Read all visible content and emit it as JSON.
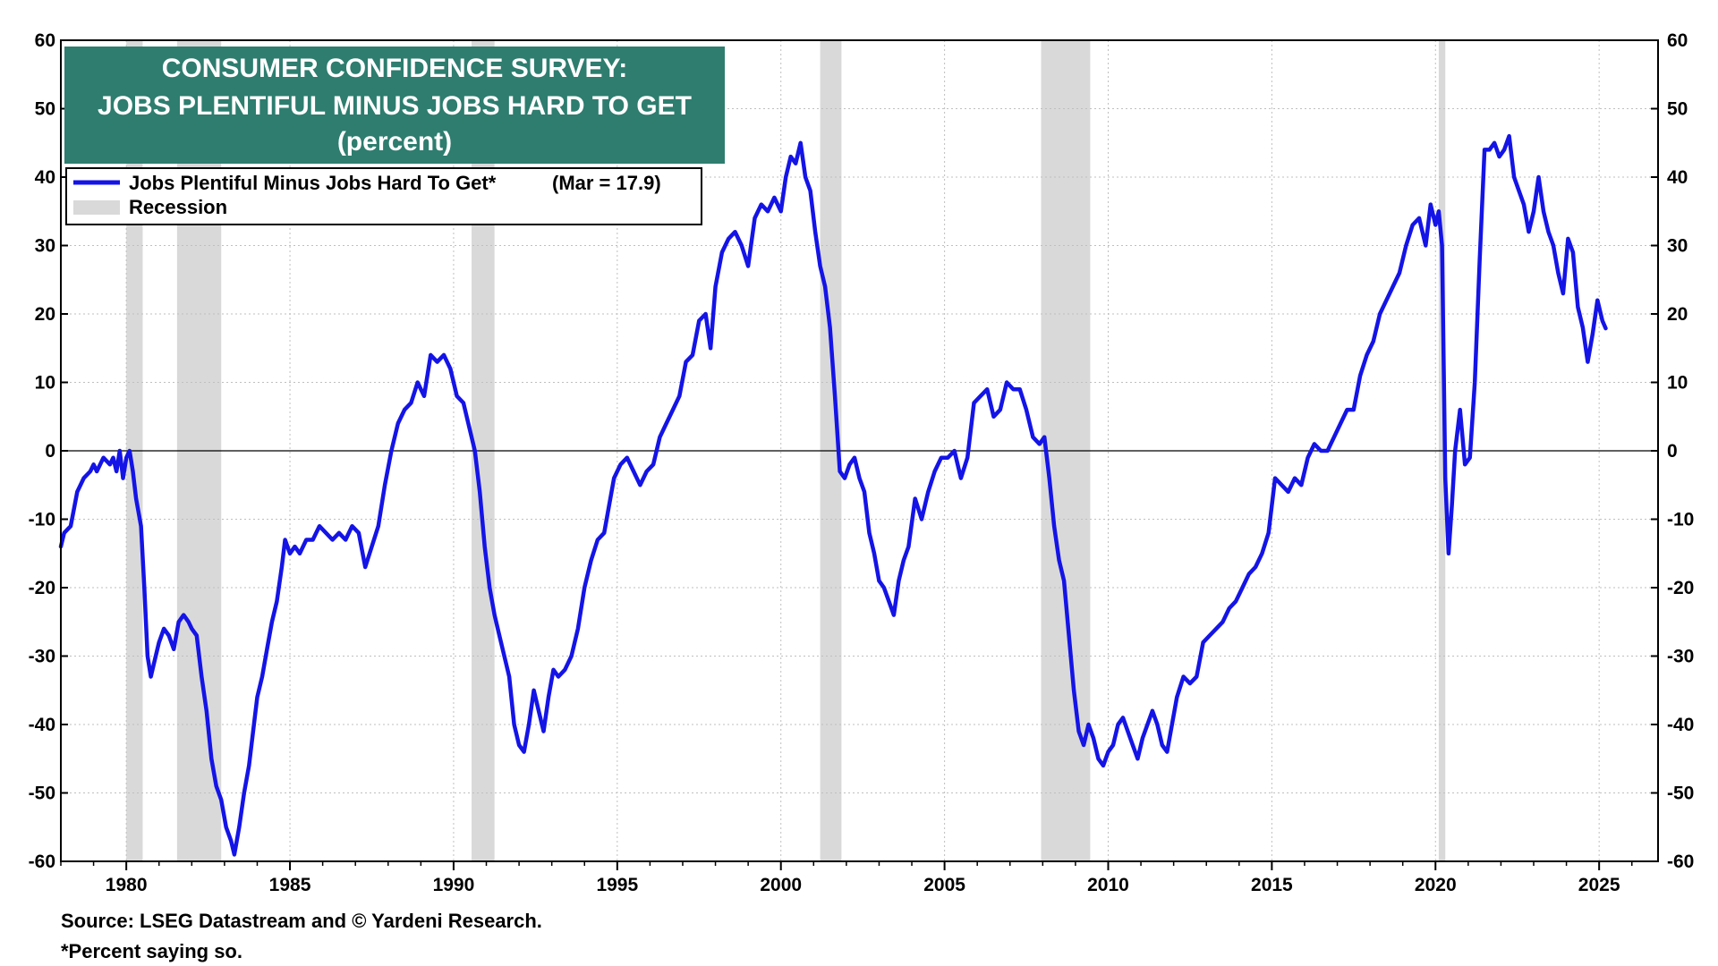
{
  "title": {
    "line1": "CONSUMER CONFIDENCE SURVEY:",
    "line2": "JOBS PLENTIFUL MINUS JOBS HARD TO GET",
    "line3": "(percent)",
    "background": "#2e7d6f"
  },
  "legend": {
    "series_label": "Jobs Plentiful Minus Jobs Hard To Get*",
    "latest_value": "(Mar = 17.9)",
    "recession_label": "Recession",
    "placement": "top-left"
  },
  "footnotes": {
    "source": "Source: LSEG Datastream and © Yardeni Research.",
    "note": "*Percent saying so."
  },
  "colors": {
    "series": "#1414e6",
    "recession": "#d9d9d9",
    "grid": "#bfbfbf",
    "zero_line": "#000000"
  },
  "chart_data": {
    "type": "line",
    "title": "CONSUMER CONFIDENCE SURVEY: JOBS PLENTIFUL MINUS JOBS HARD TO GET (percent)",
    "xlim": [
      1978.0,
      2026.8
    ],
    "ylim": [
      -60,
      60
    ],
    "x_ticks": [
      1980,
      1985,
      1990,
      1995,
      2000,
      2005,
      2010,
      2015,
      2020,
      2025
    ],
    "y_ticks": [
      60,
      50,
      40,
      30,
      20,
      10,
      0,
      -10,
      -20,
      -30,
      -40,
      -50,
      -60
    ],
    "grid": true,
    "recessions": [
      [
        1980.0,
        1980.5
      ],
      [
        1981.55,
        1982.9
      ],
      [
        1990.55,
        1991.25
      ],
      [
        2001.2,
        2001.85
      ],
      [
        2007.95,
        2009.45
      ],
      [
        2020.1,
        2020.3
      ]
    ],
    "series": [
      {
        "name": "Jobs Plentiful Minus Jobs Hard To Get*",
        "points": [
          [
            1978.0,
            -14
          ],
          [
            1978.1,
            -12
          ],
          [
            1978.3,
            -11
          ],
          [
            1978.5,
            -6
          ],
          [
            1978.7,
            -4
          ],
          [
            1978.9,
            -3
          ],
          [
            1979.0,
            -2
          ],
          [
            1979.1,
            -3
          ],
          [
            1979.3,
            -1
          ],
          [
            1979.5,
            -2
          ],
          [
            1979.6,
            -1
          ],
          [
            1979.7,
            -3
          ],
          [
            1979.8,
            0
          ],
          [
            1979.9,
            -4
          ],
          [
            1980.0,
            -1
          ],
          [
            1980.1,
            0
          ],
          [
            1980.2,
            -3
          ],
          [
            1980.3,
            -7
          ],
          [
            1980.45,
            -11
          ],
          [
            1980.55,
            -20
          ],
          [
            1980.65,
            -30
          ],
          [
            1980.75,
            -33
          ],
          [
            1980.85,
            -31
          ],
          [
            1981.0,
            -28
          ],
          [
            1981.15,
            -26
          ],
          [
            1981.3,
            -27
          ],
          [
            1981.45,
            -29
          ],
          [
            1981.6,
            -25
          ],
          [
            1981.75,
            -24
          ],
          [
            1981.9,
            -25
          ],
          [
            1982.0,
            -26
          ],
          [
            1982.15,
            -27
          ],
          [
            1982.3,
            -33
          ],
          [
            1982.45,
            -38
          ],
          [
            1982.6,
            -45
          ],
          [
            1982.75,
            -49
          ],
          [
            1982.9,
            -51
          ],
          [
            1983.05,
            -55
          ],
          [
            1983.2,
            -57
          ],
          [
            1983.3,
            -59
          ],
          [
            1983.45,
            -55
          ],
          [
            1983.6,
            -50
          ],
          [
            1983.75,
            -46
          ],
          [
            1983.9,
            -40
          ],
          [
            1984.0,
            -36
          ],
          [
            1984.15,
            -33
          ],
          [
            1984.3,
            -29
          ],
          [
            1984.45,
            -25
          ],
          [
            1984.6,
            -22
          ],
          [
            1984.75,
            -17
          ],
          [
            1984.85,
            -13
          ],
          [
            1985.0,
            -15
          ],
          [
            1985.15,
            -14
          ],
          [
            1985.3,
            -15
          ],
          [
            1985.5,
            -13
          ],
          [
            1985.7,
            -13
          ],
          [
            1985.9,
            -11
          ],
          [
            1986.1,
            -12
          ],
          [
            1986.3,
            -13
          ],
          [
            1986.5,
            -12
          ],
          [
            1986.7,
            -13
          ],
          [
            1986.9,
            -11
          ],
          [
            1987.1,
            -12
          ],
          [
            1987.3,
            -17
          ],
          [
            1987.5,
            -14
          ],
          [
            1987.7,
            -11
          ],
          [
            1987.9,
            -5
          ],
          [
            1988.1,
            0
          ],
          [
            1988.3,
            4
          ],
          [
            1988.5,
            6
          ],
          [
            1988.7,
            7
          ],
          [
            1988.9,
            10
          ],
          [
            1989.1,
            8
          ],
          [
            1989.3,
            14
          ],
          [
            1989.5,
            13
          ],
          [
            1989.7,
            14
          ],
          [
            1989.9,
            12
          ],
          [
            1990.1,
            8
          ],
          [
            1990.3,
            7
          ],
          [
            1990.5,
            3
          ],
          [
            1990.65,
            0
          ],
          [
            1990.8,
            -6
          ],
          [
            1990.95,
            -14
          ],
          [
            1991.1,
            -20
          ],
          [
            1991.25,
            -24
          ],
          [
            1991.4,
            -27
          ],
          [
            1991.55,
            -30
          ],
          [
            1991.7,
            -33
          ],
          [
            1991.85,
            -40
          ],
          [
            1992.0,
            -43
          ],
          [
            1992.15,
            -44
          ],
          [
            1992.3,
            -40
          ],
          [
            1992.45,
            -35
          ],
          [
            1992.6,
            -38
          ],
          [
            1992.75,
            -41
          ],
          [
            1992.9,
            -36
          ],
          [
            1993.05,
            -32
          ],
          [
            1993.2,
            -33
          ],
          [
            1993.4,
            -32
          ],
          [
            1993.6,
            -30
          ],
          [
            1993.8,
            -26
          ],
          [
            1994.0,
            -20
          ],
          [
            1994.2,
            -16
          ],
          [
            1994.4,
            -13
          ],
          [
            1994.6,
            -12
          ],
          [
            1994.75,
            -8
          ],
          [
            1994.9,
            -4
          ],
          [
            1995.1,
            -2
          ],
          [
            1995.3,
            -1
          ],
          [
            1995.5,
            -3
          ],
          [
            1995.7,
            -5
          ],
          [
            1995.9,
            -3
          ],
          [
            1996.1,
            -2
          ],
          [
            1996.3,
            2
          ],
          [
            1996.5,
            4
          ],
          [
            1996.7,
            6
          ],
          [
            1996.9,
            8
          ],
          [
            1997.1,
            13
          ],
          [
            1997.3,
            14
          ],
          [
            1997.5,
            19
          ],
          [
            1997.7,
            20
          ],
          [
            1997.85,
            15
          ],
          [
            1998.0,
            24
          ],
          [
            1998.2,
            29
          ],
          [
            1998.4,
            31
          ],
          [
            1998.6,
            32
          ],
          [
            1998.8,
            30
          ],
          [
            1999.0,
            27
          ],
          [
            1999.2,
            34
          ],
          [
            1999.4,
            36
          ],
          [
            1999.6,
            35
          ],
          [
            1999.8,
            37
          ],
          [
            2000.0,
            35
          ],
          [
            2000.15,
            40
          ],
          [
            2000.3,
            43
          ],
          [
            2000.45,
            42
          ],
          [
            2000.6,
            45
          ],
          [
            2000.75,
            40
          ],
          [
            2000.9,
            38
          ],
          [
            2001.05,
            32
          ],
          [
            2001.2,
            27
          ],
          [
            2001.35,
            24
          ],
          [
            2001.5,
            18
          ],
          [
            2001.65,
            8
          ],
          [
            2001.8,
            -3
          ],
          [
            2001.95,
            -4
          ],
          [
            2002.1,
            -2
          ],
          [
            2002.25,
            -1
          ],
          [
            2002.4,
            -4
          ],
          [
            2002.55,
            -6
          ],
          [
            2002.7,
            -12
          ],
          [
            2002.85,
            -15
          ],
          [
            2003.0,
            -19
          ],
          [
            2003.15,
            -20
          ],
          [
            2003.3,
            -22
          ],
          [
            2003.45,
            -24
          ],
          [
            2003.6,
            -19
          ],
          [
            2003.75,
            -16
          ],
          [
            2003.9,
            -14
          ],
          [
            2004.1,
            -7
          ],
          [
            2004.3,
            -10
          ],
          [
            2004.5,
            -6
          ],
          [
            2004.7,
            -3
          ],
          [
            2004.9,
            -1
          ],
          [
            2005.1,
            -1
          ],
          [
            2005.3,
            0
          ],
          [
            2005.5,
            -4
          ],
          [
            2005.7,
            -1
          ],
          [
            2005.9,
            7
          ],
          [
            2006.1,
            8
          ],
          [
            2006.3,
            9
          ],
          [
            2006.5,
            5
          ],
          [
            2006.7,
            6
          ],
          [
            2006.9,
            10
          ],
          [
            2007.1,
            9
          ],
          [
            2007.3,
            9
          ],
          [
            2007.5,
            6
          ],
          [
            2007.7,
            2
          ],
          [
            2007.9,
            1
          ],
          [
            2008.05,
            2
          ],
          [
            2008.2,
            -4
          ],
          [
            2008.35,
            -11
          ],
          [
            2008.5,
            -16
          ],
          [
            2008.65,
            -19
          ],
          [
            2008.8,
            -27
          ],
          [
            2008.95,
            -35
          ],
          [
            2009.1,
            -41
          ],
          [
            2009.25,
            -43
          ],
          [
            2009.4,
            -40
          ],
          [
            2009.55,
            -42
          ],
          [
            2009.7,
            -45
          ],
          [
            2009.85,
            -46
          ],
          [
            2010.0,
            -44
          ],
          [
            2010.15,
            -43
          ],
          [
            2010.3,
            -40
          ],
          [
            2010.45,
            -39
          ],
          [
            2010.6,
            -41
          ],
          [
            2010.75,
            -43
          ],
          [
            2010.9,
            -45
          ],
          [
            2011.05,
            -42
          ],
          [
            2011.2,
            -40
          ],
          [
            2011.35,
            -38
          ],
          [
            2011.5,
            -40
          ],
          [
            2011.65,
            -43
          ],
          [
            2011.8,
            -44
          ],
          [
            2011.95,
            -40
          ],
          [
            2012.1,
            -36
          ],
          [
            2012.3,
            -33
          ],
          [
            2012.5,
            -34
          ],
          [
            2012.7,
            -33
          ],
          [
            2012.9,
            -28
          ],
          [
            2013.1,
            -27
          ],
          [
            2013.3,
            -26
          ],
          [
            2013.5,
            -25
          ],
          [
            2013.7,
            -23
          ],
          [
            2013.9,
            -22
          ],
          [
            2014.1,
            -20
          ],
          [
            2014.3,
            -18
          ],
          [
            2014.5,
            -17
          ],
          [
            2014.7,
            -15
          ],
          [
            2014.9,
            -12
          ],
          [
            2015.1,
            -4
          ],
          [
            2015.3,
            -5
          ],
          [
            2015.5,
            -6
          ],
          [
            2015.7,
            -4
          ],
          [
            2015.9,
            -5
          ],
          [
            2016.1,
            -1
          ],
          [
            2016.3,
            1
          ],
          [
            2016.5,
            0
          ],
          [
            2016.7,
            0
          ],
          [
            2016.9,
            2
          ],
          [
            2017.1,
            4
          ],
          [
            2017.3,
            6
          ],
          [
            2017.5,
            6
          ],
          [
            2017.7,
            11
          ],
          [
            2017.9,
            14
          ],
          [
            2018.1,
            16
          ],
          [
            2018.3,
            20
          ],
          [
            2018.5,
            22
          ],
          [
            2018.7,
            24
          ],
          [
            2018.9,
            26
          ],
          [
            2019.1,
            30
          ],
          [
            2019.3,
            33
          ],
          [
            2019.5,
            34
          ],
          [
            2019.7,
            30
          ],
          [
            2019.85,
            36
          ],
          [
            2020.0,
            33
          ],
          [
            2020.1,
            35
          ],
          [
            2020.2,
            30
          ],
          [
            2020.3,
            -4
          ],
          [
            2020.4,
            -15
          ],
          [
            2020.5,
            -8
          ],
          [
            2020.6,
            0
          ],
          [
            2020.75,
            6
          ],
          [
            2020.9,
            -2
          ],
          [
            2021.05,
            -1
          ],
          [
            2021.2,
            10
          ],
          [
            2021.35,
            28
          ],
          [
            2021.5,
            44
          ],
          [
            2021.65,
            44
          ],
          [
            2021.8,
            45
          ],
          [
            2021.95,
            43
          ],
          [
            2022.1,
            44
          ],
          [
            2022.25,
            46
          ],
          [
            2022.4,
            40
          ],
          [
            2022.55,
            38
          ],
          [
            2022.7,
            36
          ],
          [
            2022.85,
            32
          ],
          [
            2023.0,
            35
          ],
          [
            2023.15,
            40
          ],
          [
            2023.3,
            35
          ],
          [
            2023.45,
            32
          ],
          [
            2023.6,
            30
          ],
          [
            2023.75,
            26
          ],
          [
            2023.9,
            23
          ],
          [
            2024.05,
            31
          ],
          [
            2024.2,
            29
          ],
          [
            2024.35,
            21
          ],
          [
            2024.5,
            18
          ],
          [
            2024.65,
            13
          ],
          [
            2024.8,
            17
          ],
          [
            2024.95,
            22
          ],
          [
            2025.1,
            19
          ],
          [
            2025.2,
            17.9
          ]
        ]
      }
    ]
  }
}
